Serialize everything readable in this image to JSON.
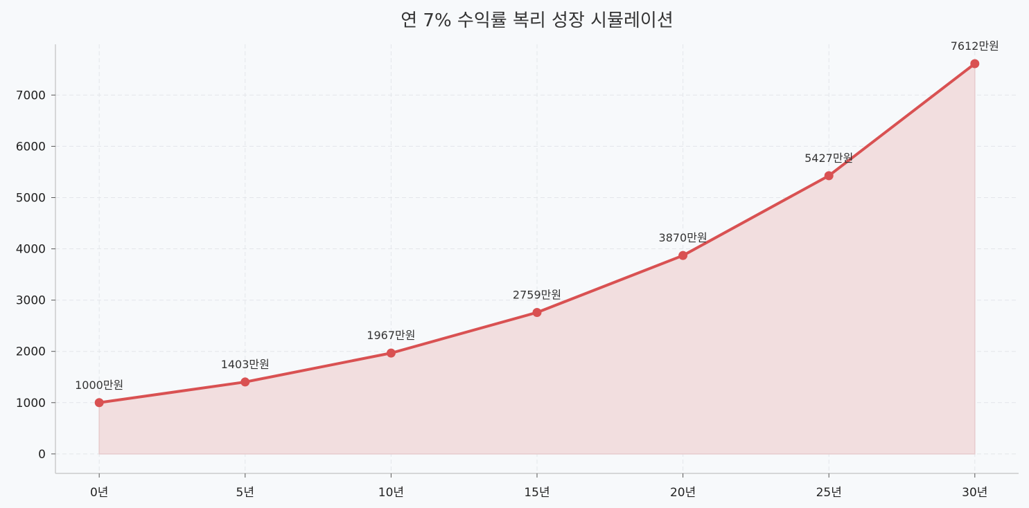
{
  "chart_data": {
    "type": "area",
    "title": "연 7% 수익률 복리 성장 시뮬레이션",
    "xlabel": "",
    "ylabel": "",
    "categories": [
      "0년",
      "5년",
      "10년",
      "15년",
      "20년",
      "25년",
      "30년"
    ],
    "x": [
      0,
      5,
      10,
      15,
      20,
      25,
      30
    ],
    "values": [
      1000,
      1403,
      1967,
      2759,
      3870,
      5427,
      7612
    ],
    "data_labels": [
      "1000만원",
      "1403만원",
      "1967만원",
      "2759만원",
      "3870만원",
      "5427만원",
      "7612만원"
    ],
    "y_ticks": [
      "0",
      "1000",
      "2000",
      "3000",
      "4000",
      "5000",
      "6000",
      "7000"
    ],
    "ylim": [
      -380,
      7990
    ],
    "xlim": [
      -1.5,
      31.5
    ],
    "grid": true,
    "colors": {
      "line": "#d95152",
      "fill": "#f2dedf",
      "background": "#f7f9fb"
    }
  }
}
